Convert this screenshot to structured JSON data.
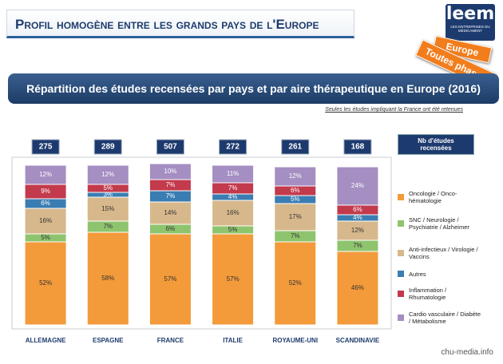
{
  "header": {
    "title": "Profil homogène entre les grands pays de l'Europe",
    "logo": "leem",
    "logo_sub": "LES ENTREPRISES DU MÉDICAMENT",
    "tag1": "Europe",
    "tag2": "Toutes phases"
  },
  "banner": "Répartition des études recensées par pays et par aire thérapeutique en Europe (2016)",
  "note": "Seules les études impliquant la France ont été retenues",
  "totals_header": "Nb d'études recensées",
  "totals": [
    "275",
    "289",
    "507",
    "272",
    "261",
    "168"
  ],
  "watermark": "chu-media.info",
  "chart_data": {
    "type": "stacked_bar",
    "categories": [
      "ALLEMAGNE",
      "ESPAGNE",
      "FRANCE",
      "ITALIE",
      "ROYAUME-UNI",
      "SCANDINAVIE"
    ],
    "series": [
      {
        "name": "Oncologie / Onco-hématologie",
        "color": "#f39a3b",
        "values": [
          52,
          58,
          57,
          57,
          52,
          46
        ],
        "value_labels": [
          "52%",
          "58%",
          "57%",
          "57%",
          "52%",
          "46%"
        ]
      },
      {
        "name": "SNC / Neurologie / Psychiatrie / Alzheimer",
        "color": "#8fc46e",
        "values": [
          5,
          7,
          6,
          5,
          7,
          7
        ],
        "value_labels": [
          "5%",
          "7%",
          "6%",
          "5%",
          "7%",
          "7%"
        ]
      },
      {
        "name": "Anti-infectieux / Virologie / Vaccins",
        "color": "#d7b88c",
        "values": [
          16,
          15,
          14,
          16,
          17,
          12
        ],
        "value_labels": [
          "16%",
          "15%",
          "14%",
          "16%",
          "17%",
          "12%"
        ]
      },
      {
        "name": "Autres",
        "color": "#3a7db2",
        "values": [
          6,
          3,
          7,
          4,
          5,
          4
        ],
        "value_labels": [
          "6%",
          "3%",
          "7%",
          "4%",
          "5%",
          "4%"
        ]
      },
      {
        "name": "Inflammation / Rhumatologie",
        "color": "#c23a4c",
        "values": [
          9,
          5,
          7,
          7,
          6,
          6
        ],
        "value_labels": [
          "9%",
          "5%",
          "7%",
          "7%",
          "6%",
          "6%"
        ]
      },
      {
        "name": "Cardio vasculaire / Diabète / Métabolisme",
        "color": "#a48ec2",
        "values": [
          12,
          12,
          10,
          11,
          12,
          24
        ],
        "value_labels": [
          "12%",
          "12%",
          "10%",
          "11%",
          "12%",
          "24%"
        ]
      }
    ]
  }
}
